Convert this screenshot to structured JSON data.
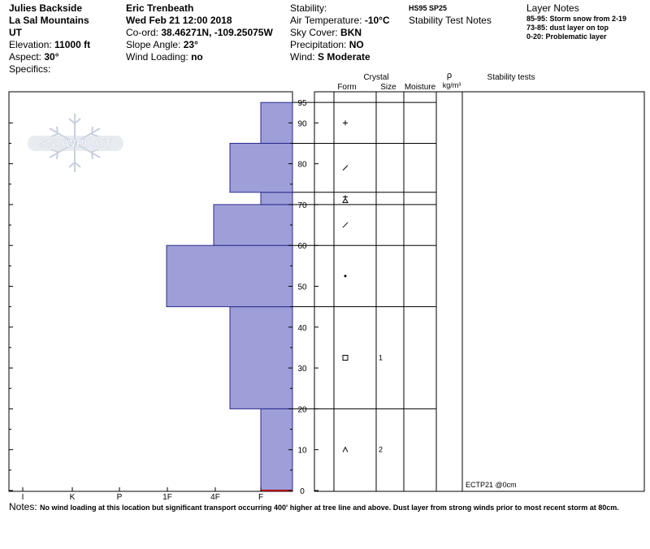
{
  "header": {
    "location": {
      "site": "Julies Backside",
      "range": "La Sal Mountains",
      "state": "UT",
      "elevation_label": "Elevation:",
      "elevation_value": "11000 ft",
      "aspect_label": "Aspect:",
      "aspect_value": "30°",
      "specifics_label": "Specifics:"
    },
    "observer": {
      "name": "Eric Trenbeath",
      "date": "Wed Feb 21 12:00 2018",
      "coord_label": "Co-ord:",
      "coord_value": "38.46271N, -109.25075W",
      "slope_label": "Slope Angle:",
      "slope_value": "23°",
      "wind_loading_label": "Wind Loading:",
      "wind_loading_value": "no"
    },
    "conditions": {
      "stability_label": "Stability:",
      "air_temp_label": "Air Temperature:",
      "air_temp_value": "-10°C",
      "sky_label": "Sky Cover:",
      "sky_value": "BKN",
      "precip_label": "Precipitation:",
      "precip_value": "NO",
      "wind_label": "Wind:",
      "wind_value": "S Moderate"
    },
    "test_notes": {
      "codes": "HS95  SP25",
      "title": "Stability Test Notes"
    },
    "layer_notes": {
      "title": "Layer Notes",
      "items": [
        "85-95: Storm snow from 2-19",
        "73-85: dust layer on top",
        "0-20: Problematic layer"
      ]
    }
  },
  "watermark": {
    "text": "SNOWPILOT"
  },
  "columns": {
    "crystal": "Crystal",
    "form": "Form",
    "size": "Size",
    "moisture": "Moisture",
    "rho": "ρ",
    "density_unit": "kg/m³",
    "stability_tests": "Stability tests"
  },
  "chart_data": {
    "type": "bar",
    "orientation": "horizontal",
    "y_unit": "cm",
    "ylim": [
      0,
      95
    ],
    "y_ticks": [
      0,
      10,
      20,
      30,
      40,
      50,
      60,
      70,
      80,
      90,
      95
    ],
    "x_categories": [
      "I",
      "K",
      "P",
      "1F",
      "4F",
      "F"
    ],
    "hardness_profile": [
      {
        "bottom": 0,
        "top": 20,
        "hardness": "F"
      },
      {
        "bottom": 20,
        "top": 45,
        "hardness": "4F"
      },
      {
        "bottom": 45,
        "top": 60,
        "hardness": "1F+"
      },
      {
        "bottom": 60,
        "top": 70,
        "hardness": "4F+"
      },
      {
        "bottom": 70,
        "top": 73,
        "hardness": "F"
      },
      {
        "bottom": 73,
        "top": 85,
        "hardness": "4F"
      },
      {
        "bottom": 85,
        "top": 95,
        "hardness": "F"
      }
    ],
    "layers": [
      {
        "bottom": 0,
        "top": 20,
        "form": "facet-rounding",
        "size": "2"
      },
      {
        "bottom": 20,
        "top": 45,
        "form": "faceted-crystals",
        "size": "1"
      },
      {
        "bottom": 45,
        "top": 60,
        "form": "rounded-grains",
        "size": ""
      },
      {
        "bottom": 60,
        "top": 70,
        "form": "decomposing-fragments",
        "size": ""
      },
      {
        "bottom": 70,
        "top": 73,
        "form": "mixed",
        "size": ""
      },
      {
        "bottom": 73,
        "top": 85,
        "form": "decomposing-fragments",
        "size": ""
      },
      {
        "bottom": 85,
        "top": 95,
        "form": "precipitation-particles",
        "size": ""
      }
    ],
    "stability_tests": [
      {
        "label": "ECTP21 @0cm",
        "depth": 0
      }
    ]
  },
  "notes": {
    "label": "Notes:",
    "text": "No wind loading at this location but significant transport occurring 400' higher at tree line and above. Dust layer from strong winds prior to most recent storm at 80cm."
  },
  "colors": {
    "bar_fill": "#9e9ed9",
    "bar_stroke": "#2b2b8c",
    "ground": "#b30000",
    "watermark": "#c8d0dc"
  }
}
